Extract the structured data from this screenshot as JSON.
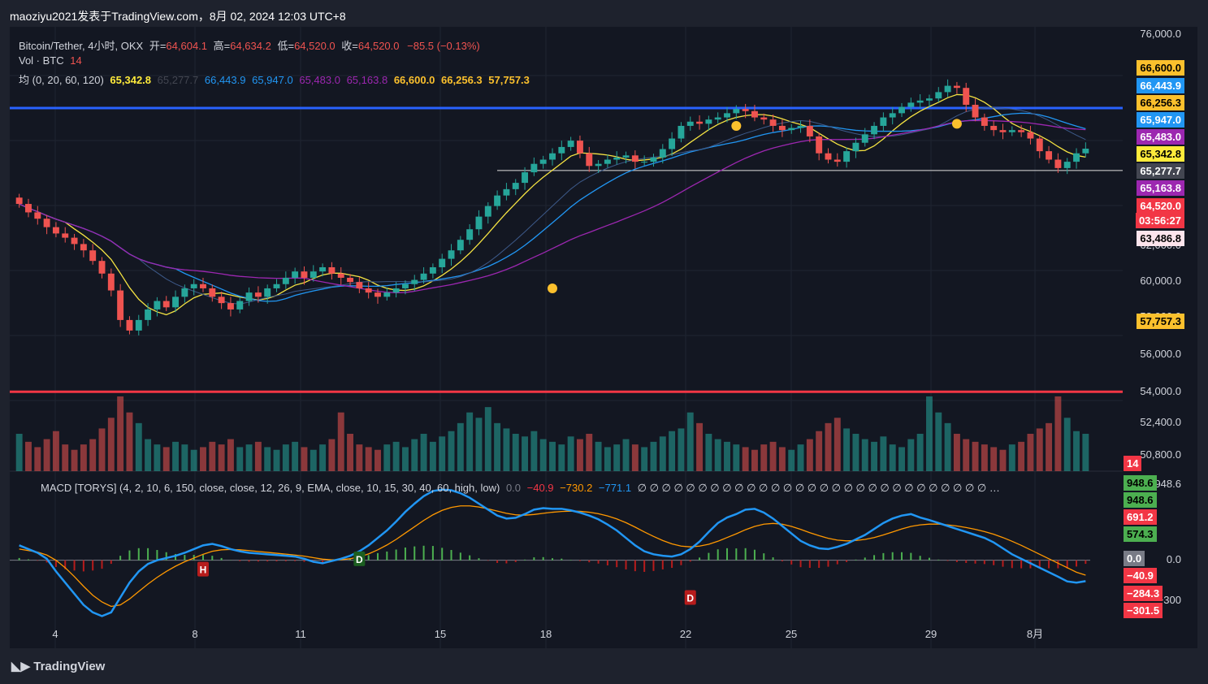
{
  "header": {
    "text": "maoziyu2021发表于TradingView.com，8月 02, 2024 12:03 UTC+8"
  },
  "legend": {
    "symbol": "Bitcoin/Tether, 4小时, OKX",
    "ohlc_open_label": "开=",
    "ohlc_open": "64,604.1",
    "ohlc_high_label": "高=",
    "ohlc_high": "64,634.2",
    "ohlc_low_label": "低=",
    "ohlc_low": "64,520.0",
    "ohlc_close_label": "收=",
    "ohlc_close": "64,520.0",
    "change": "−85.5 (−0.13%)",
    "vol_label": "Vol · BTC",
    "vol_value": "14",
    "ma_label": "均 (0, 20, 60, 120)",
    "ma_values": [
      "65,342.8",
      "65,277.7",
      "66,443.9",
      "65,947.0",
      "65,483.0",
      "65,163.8",
      "66,600.0",
      "66,256.3",
      "57,757.3"
    ]
  },
  "macd_legend": {
    "label": "MACD [TORYS] (4, 2, 10, 6, 150, close, close, 12, 26, 9, EMA, close, 10, 15, 30, 40, 60, high, low)",
    "v1": "0.0",
    "v2": "−40.9",
    "v3": "−730.2",
    "v4": "−771.1",
    "tail": "∅ ∅ ∅ ∅ ∅ ∅ ∅ ∅ ∅ ∅ ∅ ∅ ∅ ∅ ∅ ∅ ∅ ∅ ∅ ∅ ∅ ∅ ∅ ∅ ∅ ∅ ∅ ∅ ∅ …"
  },
  "colors": {
    "up": "#26a69a",
    "down": "#ef5350",
    "ma_yellow": "#f5e342",
    "ma_blue": "#2196f3",
    "ma_purple": "#9c27b0",
    "hline_blue": "#2962ff",
    "hline_red": "#f23645",
    "bg": "#131722"
  },
  "chart_data": {
    "type": "candlestick",
    "title": "Bitcoin/Tether, 4小时, OKX",
    "y_ticks": [
      "76,000.0",
      "62,000.0",
      "60,000.0",
      "58,000.0",
      "56,000.0",
      "54,000.0",
      "52,400.0",
      "50,800.0"
    ],
    "x_ticks": [
      "4",
      "8",
      "11",
      "15",
      "18",
      "22",
      "25",
      "29",
      "8月"
    ],
    "macd_y_ticks": [
      "948.6",
      "0.0",
      "−300"
    ],
    "price_tags": [
      {
        "text": "66,600.0",
        "bg": "#fbc02d",
        "fg": "#000000"
      },
      {
        "text": "66,443.9",
        "bg": "#2196f3",
        "fg": "#ffffff"
      },
      {
        "text": "66,256.3",
        "bg": "#fbc02d",
        "fg": "#000000"
      },
      {
        "text": "65,947.0",
        "bg": "#2196f3",
        "fg": "#ffffff"
      },
      {
        "text": "65,483.0",
        "bg": "#9c27b0",
        "fg": "#ffffff"
      },
      {
        "text": "65,342.8",
        "bg": "#ffeb3b",
        "fg": "#000000"
      },
      {
        "text": "65,277.7",
        "bg": "#434651",
        "fg": "#ffffff"
      },
      {
        "text": "65,163.8",
        "bg": "#9c27b0",
        "fg": "#ffffff"
      },
      {
        "text": "64,520.0",
        "bg": "#f23645",
        "fg": "#ffffff"
      },
      {
        "text": "03:56:27",
        "bg": "#f23645",
        "fg": "#ffffff"
      },
      {
        "text": "63,486.8",
        "bg": "#fce4ec",
        "fg": "#000000"
      },
      {
        "text": "57,757.3",
        "bg": "#fbc02d",
        "fg": "#000000"
      },
      {
        "text": "14",
        "bg": "#f23645",
        "fg": "#ffffff"
      }
    ],
    "macd_tags": [
      {
        "text": "948.6",
        "bg": "#4caf50",
        "fg": "#000000"
      },
      {
        "text": "948.6",
        "bg": "#4caf50",
        "fg": "#000000"
      },
      {
        "text": "691.2",
        "bg": "#f23645",
        "fg": "#ffffff"
      },
      {
        "text": "574.3",
        "bg": "#4caf50",
        "fg": "#000000"
      },
      {
        "text": "0.0",
        "bg": "#787b86",
        "fg": "#ffffff"
      },
      {
        "text": "−40.9",
        "bg": "#f23645",
        "fg": "#ffffff"
      },
      {
        "text": "−284.3",
        "bg": "#f23645",
        "fg": "#ffffff"
      },
      {
        "text": "−301.5",
        "bg": "#f23645",
        "fg": "#ffffff"
      }
    ],
    "hlines": [
      66443.9,
      53000,
      63486.8
    ],
    "markers": [
      "H",
      "D",
      "D"
    ],
    "closes": [
      61900,
      61500,
      61200,
      60800,
      60500,
      60300,
      60000,
      59700,
      59200,
      58600,
      57800,
      56400,
      55900,
      56400,
      56900,
      57300,
      57000,
      57500,
      57900,
      58100,
      57900,
      57500,
      57200,
      56900,
      57300,
      57700,
      57500,
      57900,
      58100,
      58400,
      58700,
      58400,
      58700,
      58900,
      58600,
      58400,
      58200,
      57900,
      57700,
      57500,
      57700,
      57900,
      58100,
      58300,
      58600,
      58900,
      59300,
      59700,
      60200,
      60700,
      61300,
      61800,
      62300,
      62600,
      62900,
      63400,
      63800,
      64000,
      64300,
      64600,
      64900,
      64300,
      63700,
      63800,
      64000,
      64100,
      64200,
      63900,
      63900,
      64100,
      64500,
      65000,
      65600,
      65800,
      65700,
      65900,
      66000,
      66200,
      66400,
      66300,
      66000,
      65900,
      65600,
      65400,
      65500,
      65600,
      65100,
      64300,
      64000,
      63900,
      64400,
      64800,
      65200,
      65600,
      66000,
      66200,
      66500,
      66700,
      66800,
      66900,
      67200,
      67500,
      67400,
      66600,
      66000,
      65600,
      65400,
      65300,
      65400,
      65300,
      65000,
      64400,
      64000,
      63600,
      63900,
      64300,
      64520
    ],
    "volumes": [
      14,
      11,
      9,
      12,
      15,
      10,
      8,
      10,
      12,
      16,
      20,
      28,
      22,
      18,
      12,
      10,
      9,
      11,
      10,
      8,
      9,
      11,
      10,
      12,
      9,
      10,
      11,
      9,
      8,
      10,
      11,
      9,
      8,
      10,
      12,
      22,
      14,
      10,
      9,
      8,
      10,
      11,
      9,
      12,
      14,
      11,
      13,
      15,
      18,
      22,
      20,
      24,
      18,
      16,
      14,
      13,
      15,
      12,
      11,
      10,
      13,
      12,
      14,
      11,
      9,
      10,
      12,
      10,
      9,
      11,
      13,
      15,
      16,
      22,
      18,
      14,
      12,
      11,
      10,
      9,
      8,
      10,
      11,
      9,
      8,
      10,
      12,
      15,
      18,
      20,
      16,
      14,
      12,
      11,
      13,
      10,
      9,
      12,
      14,
      28,
      22,
      18,
      14,
      12,
      11,
      10,
      9,
      8,
      10,
      11,
      14,
      16,
      18,
      28,
      20,
      15,
      14
    ],
    "macd": [
      200,
      150,
      100,
      20,
      -150,
      -300,
      -450,
      -600,
      -700,
      -750,
      -700,
      -500,
      -300,
      -150,
      -50,
      0,
      30,
      60,
      100,
      150,
      200,
      220,
      190,
      150,
      120,
      100,
      90,
      80,
      70,
      60,
      50,
      20,
      -20,
      -40,
      -10,
      20,
      60,
      120,
      200,
      300,
      400,
      520,
      650,
      760,
      860,
      930,
      948,
      940,
      900,
      840,
      760,
      680,
      600,
      560,
      570,
      620,
      680,
      700,
      690,
      691,
      670,
      640,
      600,
      550,
      480,
      400,
      300,
      200,
      120,
      80,
      60,
      50,
      80,
      150,
      250,
      380,
      500,
      574,
      620,
      680,
      690,
      640,
      560,
      460,
      360,
      260,
      200,
      160,
      150,
      180,
      220,
      280,
      340,
      420,
      500,
      560,
      600,
      620,
      574,
      540,
      500,
      460,
      420,
      380,
      340,
      300,
      240,
      160,
      80,
      20,
      -40,
      -100,
      -160,
      -220,
      -284,
      -301,
      -280
    ],
    "signal": [
      150,
      130,
      110,
      70,
      0,
      -100,
      -220,
      -350,
      -470,
      -560,
      -620,
      -600,
      -520,
      -420,
      -320,
      -230,
      -150,
      -80,
      -20,
      30,
      80,
      120,
      140,
      145,
      140,
      130,
      118,
      106,
      94,
      82,
      70,
      55,
      35,
      15,
      5,
      8,
      20,
      45,
      85,
      140,
      205,
      280,
      365,
      450,
      535,
      610,
      670,
      710,
      730,
      730,
      715,
      690,
      660,
      630,
      610,
      605,
      615,
      630,
      645,
      655,
      660,
      657,
      645,
      625,
      595,
      555,
      505,
      445,
      380,
      320,
      265,
      220,
      190,
      180,
      190,
      215,
      255,
      305,
      355,
      410,
      455,
      485,
      495,
      485,
      455,
      415,
      370,
      330,
      295,
      270,
      260,
      265,
      280,
      305,
      340,
      380,
      420,
      455,
      475,
      485,
      485,
      475,
      460,
      440,
      415,
      385,
      350,
      305,
      255,
      200,
      140,
      80,
      20,
      -40,
      -100,
      -160,
      -200
    ]
  }
}
